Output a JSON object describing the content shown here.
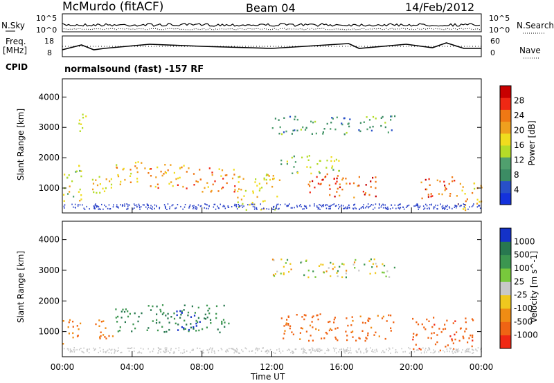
{
  "header": {
    "title": "McMurdo (fitACF)",
    "beam": "Beam 04",
    "date": "14/Feb/2012",
    "nsky_label": "N.Sky",
    "nsearch_label": "N.Search",
    "freq_label_1": "Freq.",
    "freq_label_2": "[MHz]",
    "nave_label": "Nave",
    "cpid_label": "CPID",
    "cpid_value": "normalsound (fast) -157 RF",
    "noise_ticks_left": [
      "10^5",
      "10^0"
    ],
    "noise_ticks_right": [
      "10^5",
      "10^0"
    ],
    "freq_ticks": [
      "18",
      "8"
    ],
    "nave_ticks": [
      "60",
      "0"
    ]
  },
  "chart_data": [
    {
      "type": "heatmap",
      "name": "power",
      "ylabel": "Slant Range [km]",
      "xlabel": "Time UT",
      "x_ticks": [
        "00:00",
        "04:00",
        "08:00",
        "12:00",
        "16:00",
        "20:00",
        "00:00"
      ],
      "xlim_hours": [
        0,
        24
      ],
      "y_ticks": [
        1000,
        2000,
        3000,
        4000
      ],
      "ylim_km": [
        180,
        4600
      ],
      "colorbar": {
        "label": "Power [dB]",
        "ticks": [
          4,
          8,
          12,
          16,
          20,
          24,
          28
        ],
        "colors": [
          "#1432dc",
          "#2850c8",
          "#3c8c64",
          "#50a06e",
          "#b4dc28",
          "#f0dc1e",
          "#f0a01e",
          "#f07814",
          "#f02814",
          "#c80000"
        ]
      },
      "scatter_regions": [
        {
          "t": [
            0.0,
            1.2
          ],
          "r": [
            600,
            1800
          ],
          "p": 14
        },
        {
          "t": [
            0.8,
            1.4
          ],
          "r": [
            2700,
            3500
          ],
          "p": 12
        },
        {
          "t": [
            1.5,
            3.5
          ],
          "r": [
            800,
            1400
          ],
          "p": 16
        },
        {
          "t": [
            3.0,
            5.0
          ],
          "r": [
            1200,
            1900
          ],
          "p": 18
        },
        {
          "t": [
            5.0,
            7.5
          ],
          "r": [
            1000,
            1800
          ],
          "p": 20
        },
        {
          "t": [
            7.5,
            10.0
          ],
          "r": [
            900,
            1700
          ],
          "p": 22
        },
        {
          "t": [
            10.0,
            12.5
          ],
          "r": [
            300,
            1500
          ],
          "p": 16
        },
        {
          "t": [
            12.5,
            16.0
          ],
          "r": [
            1500,
            2100
          ],
          "p": 12
        },
        {
          "t": [
            14.0,
            18.0
          ],
          "r": [
            700,
            1500
          ],
          "p": 24
        },
        {
          "t": [
            12.0,
            19.0
          ],
          "r": [
            2800,
            3400
          ],
          "p": 8
        },
        {
          "t": [
            20.5,
            22.5
          ],
          "r": [
            600,
            1400
          ],
          "p": 24
        },
        {
          "t": [
            22.5,
            24.0
          ],
          "r": [
            300,
            1200
          ],
          "p": 18
        }
      ]
    },
    {
      "type": "heatmap",
      "name": "velocity",
      "ylabel": "Slant Range [km]",
      "xlabel": "Time UT",
      "x_ticks": [
        "00:00",
        "04:00",
        "08:00",
        "12:00",
        "16:00",
        "20:00",
        "00:00"
      ],
      "xlim_hours": [
        0,
        24
      ],
      "y_ticks": [
        1000,
        2000,
        3000,
        4000
      ],
      "ylim_km": [
        180,
        4600
      ],
      "colorbar": {
        "label": "Velocity [m s^-1]",
        "ticks": [
          "1000",
          "500",
          "100",
          "25",
          "-25",
          "-100",
          "-500",
          "-1000"
        ],
        "colors": [
          "#1432c8",
          "#287850",
          "#3c9650",
          "#78c83c",
          "#c8c8c8",
          "#f0c81e",
          "#f08c14",
          "#f06414",
          "#f02814"
        ]
      },
      "scatter_regions": [
        {
          "t": [
            0.0,
            1.0
          ],
          "r": [
            600,
            1500
          ],
          "v": -300
        },
        {
          "t": [
            1.5,
            3.0
          ],
          "r": [
            800,
            1400
          ],
          "v": -300
        },
        {
          "t": [
            3.0,
            9.5
          ],
          "r": [
            1000,
            1900
          ],
          "v": 300
        },
        {
          "t": [
            6.5,
            8.0
          ],
          "r": [
            1000,
            1700
          ],
          "v": 800
        },
        {
          "t": [
            12.5,
            19.0
          ],
          "r": [
            700,
            1600
          ],
          "v": -400
        },
        {
          "t": [
            12.0,
            19.0
          ],
          "r": [
            2800,
            3400
          ],
          "v": 0
        },
        {
          "t": [
            20.0,
            23.5
          ],
          "r": [
            400,
            1500
          ],
          "v": -500
        }
      ]
    }
  ]
}
